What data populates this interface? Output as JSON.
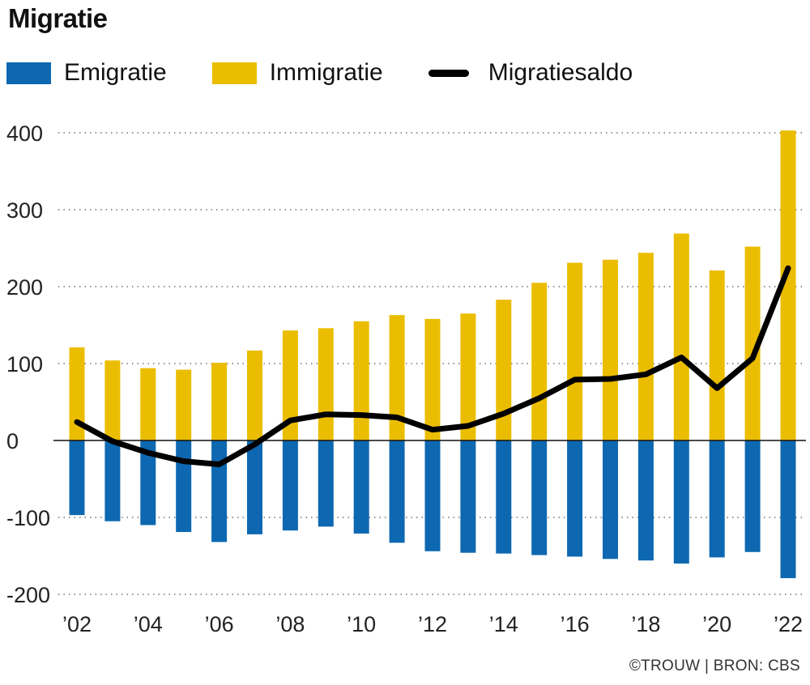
{
  "title": "Migratie",
  "legend": {
    "emigratie": "Emigratie",
    "immigratie": "Immigratie",
    "saldo": "Migratiesaldo"
  },
  "colors": {
    "emigratie": "#0d68b1",
    "immigratie": "#ebbd00",
    "saldo": "#000000"
  },
  "credit": "©TROUW | BRON: CBS",
  "chart_data": {
    "type": "bar",
    "title": "Migratie",
    "xlabel": "",
    "ylabel": "",
    "ylim": [
      -200,
      400
    ],
    "yticks": [
      {
        "value": 400,
        "label": "400"
      },
      {
        "value": 300,
        "label": "300"
      },
      {
        "value": 200,
        "label": "200"
      },
      {
        "value": 100,
        "label": "100"
      },
      {
        "value": 0,
        "label": "0"
      },
      {
        "value": -100,
        "label": "-100"
      },
      {
        "value": -200,
        "label": "-200"
      }
    ],
    "grid": true,
    "categories": [
      "2002",
      "2003",
      "2004",
      "2005",
      "2006",
      "2007",
      "2008",
      "2009",
      "2010",
      "2011",
      "2012",
      "2013",
      "2014",
      "2015",
      "2016",
      "2017",
      "2018",
      "2019",
      "2020",
      "2021",
      "2022"
    ],
    "xtick_labels": [
      "’02",
      "",
      "’04",
      "",
      "’06",
      "",
      "’08",
      "",
      "’10",
      "",
      "’12",
      "",
      "’14",
      "",
      "’16",
      "",
      "’18",
      "",
      "’20",
      "",
      "’22"
    ],
    "series": [
      {
        "name": "Immigratie",
        "type": "bar",
        "values": [
          121,
          104,
          94,
          92,
          101,
          117,
          143,
          146,
          155,
          163,
          158,
          165,
          183,
          205,
          231,
          235,
          244,
          269,
          221,
          252,
          403
        ]
      },
      {
        "name": "Emigratie",
        "type": "bar",
        "values": [
          -97,
          -105,
          -110,
          -119,
          -132,
          -122,
          -117,
          -112,
          -121,
          -133,
          -144,
          -146,
          -147,
          -149,
          -151,
          -154,
          -156,
          -160,
          -152,
          -145,
          -179
        ]
      },
      {
        "name": "Migratiesaldo",
        "type": "line",
        "values": [
          24,
          -1,
          -16,
          -27,
          -31,
          -5,
          26,
          34,
          33,
          30,
          14,
          19,
          35,
          55,
          79,
          80,
          86,
          108,
          68,
          107,
          224
        ]
      }
    ]
  }
}
